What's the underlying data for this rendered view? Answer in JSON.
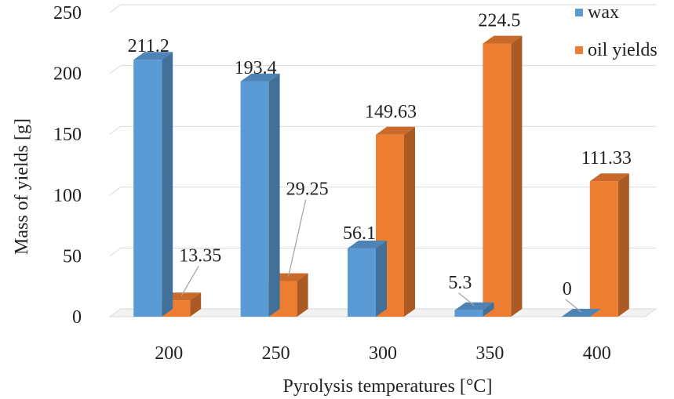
{
  "chart_data": {
    "type": "bar",
    "title": "",
    "xlabel": "Pyrolysis temperatures [°C]",
    "ylabel": "Mass of yields [g]",
    "categories": [
      "200",
      "250",
      "300",
      "350",
      "400"
    ],
    "ylim": [
      0,
      250
    ],
    "yticks": [
      "0",
      "50",
      "100",
      "150",
      "200",
      "250"
    ],
    "grid": true,
    "legend_position": "top-right",
    "series": [
      {
        "name": "wax",
        "values": [
          211.2,
          193.4,
          56.1,
          5.3,
          0
        ],
        "labels": [
          "211.2",
          "193.4",
          "56.1",
          "5.3",
          "0"
        ],
        "color": "#5b9bd5"
      },
      {
        "name": "oil yields",
        "values": [
          13.35,
          29.25,
          149.63,
          224.5,
          111.33
        ],
        "labels": [
          "13.35",
          "29.25",
          "149.63",
          "224.5",
          "111.33"
        ],
        "color": "#ed7d31"
      }
    ]
  }
}
